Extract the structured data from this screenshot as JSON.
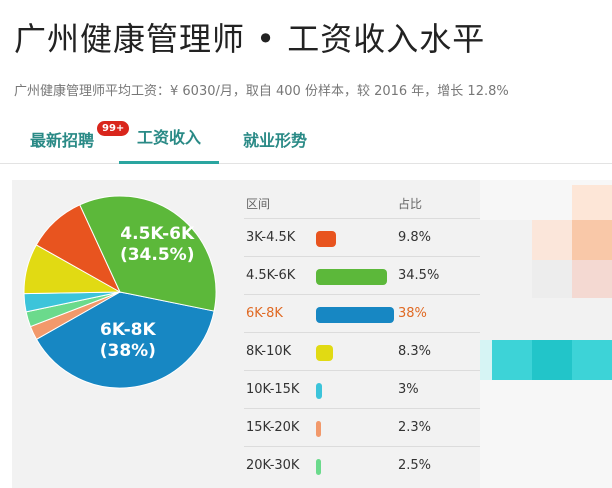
{
  "page": {
    "title": "广州健康管理师 • 工资收入水平",
    "subtitle": "广州健康管理师平均工资：¥ 6030/月，取自 400 份样本，较 2016 年，增长 12.8%"
  },
  "tabs": [
    {
      "label": "最新招聘",
      "badge": "99+"
    },
    {
      "label": "工资收入"
    },
    {
      "label": "就业形势"
    }
  ],
  "table": {
    "header_range": "区间",
    "header_pct": "占比",
    "highlight_color": "#e06a24"
  },
  "chart_data": {
    "type": "pie",
    "title": "",
    "categories": [
      "3K-4.5K",
      "4.5K-6K",
      "6K-8K",
      "8K-10K",
      "10K-15K",
      "15K-20K",
      "20K-30K"
    ],
    "values": [
      9.8,
      34.5,
      38,
      8.3,
      3,
      2.3,
      2.5
    ],
    "value_labels": [
      "9.8%",
      "34.5%",
      "38%",
      "8.3%",
      "3%",
      "2.3%",
      "2.5%"
    ],
    "colors": [
      "#e8541f",
      "#5cb83a",
      "#1787c3",
      "#e1da13",
      "#3cc4da",
      "#f2996b",
      "#6bda8c"
    ],
    "highlight": "6K-8K",
    "slice_labels": [
      {
        "category": "6K-8K",
        "line1": "6K-8K",
        "line2": "(38%)"
      },
      {
        "category": "4.5K-6K",
        "line1": "4.5K-6K",
        "line2": "(34.5%)"
      }
    ]
  }
}
